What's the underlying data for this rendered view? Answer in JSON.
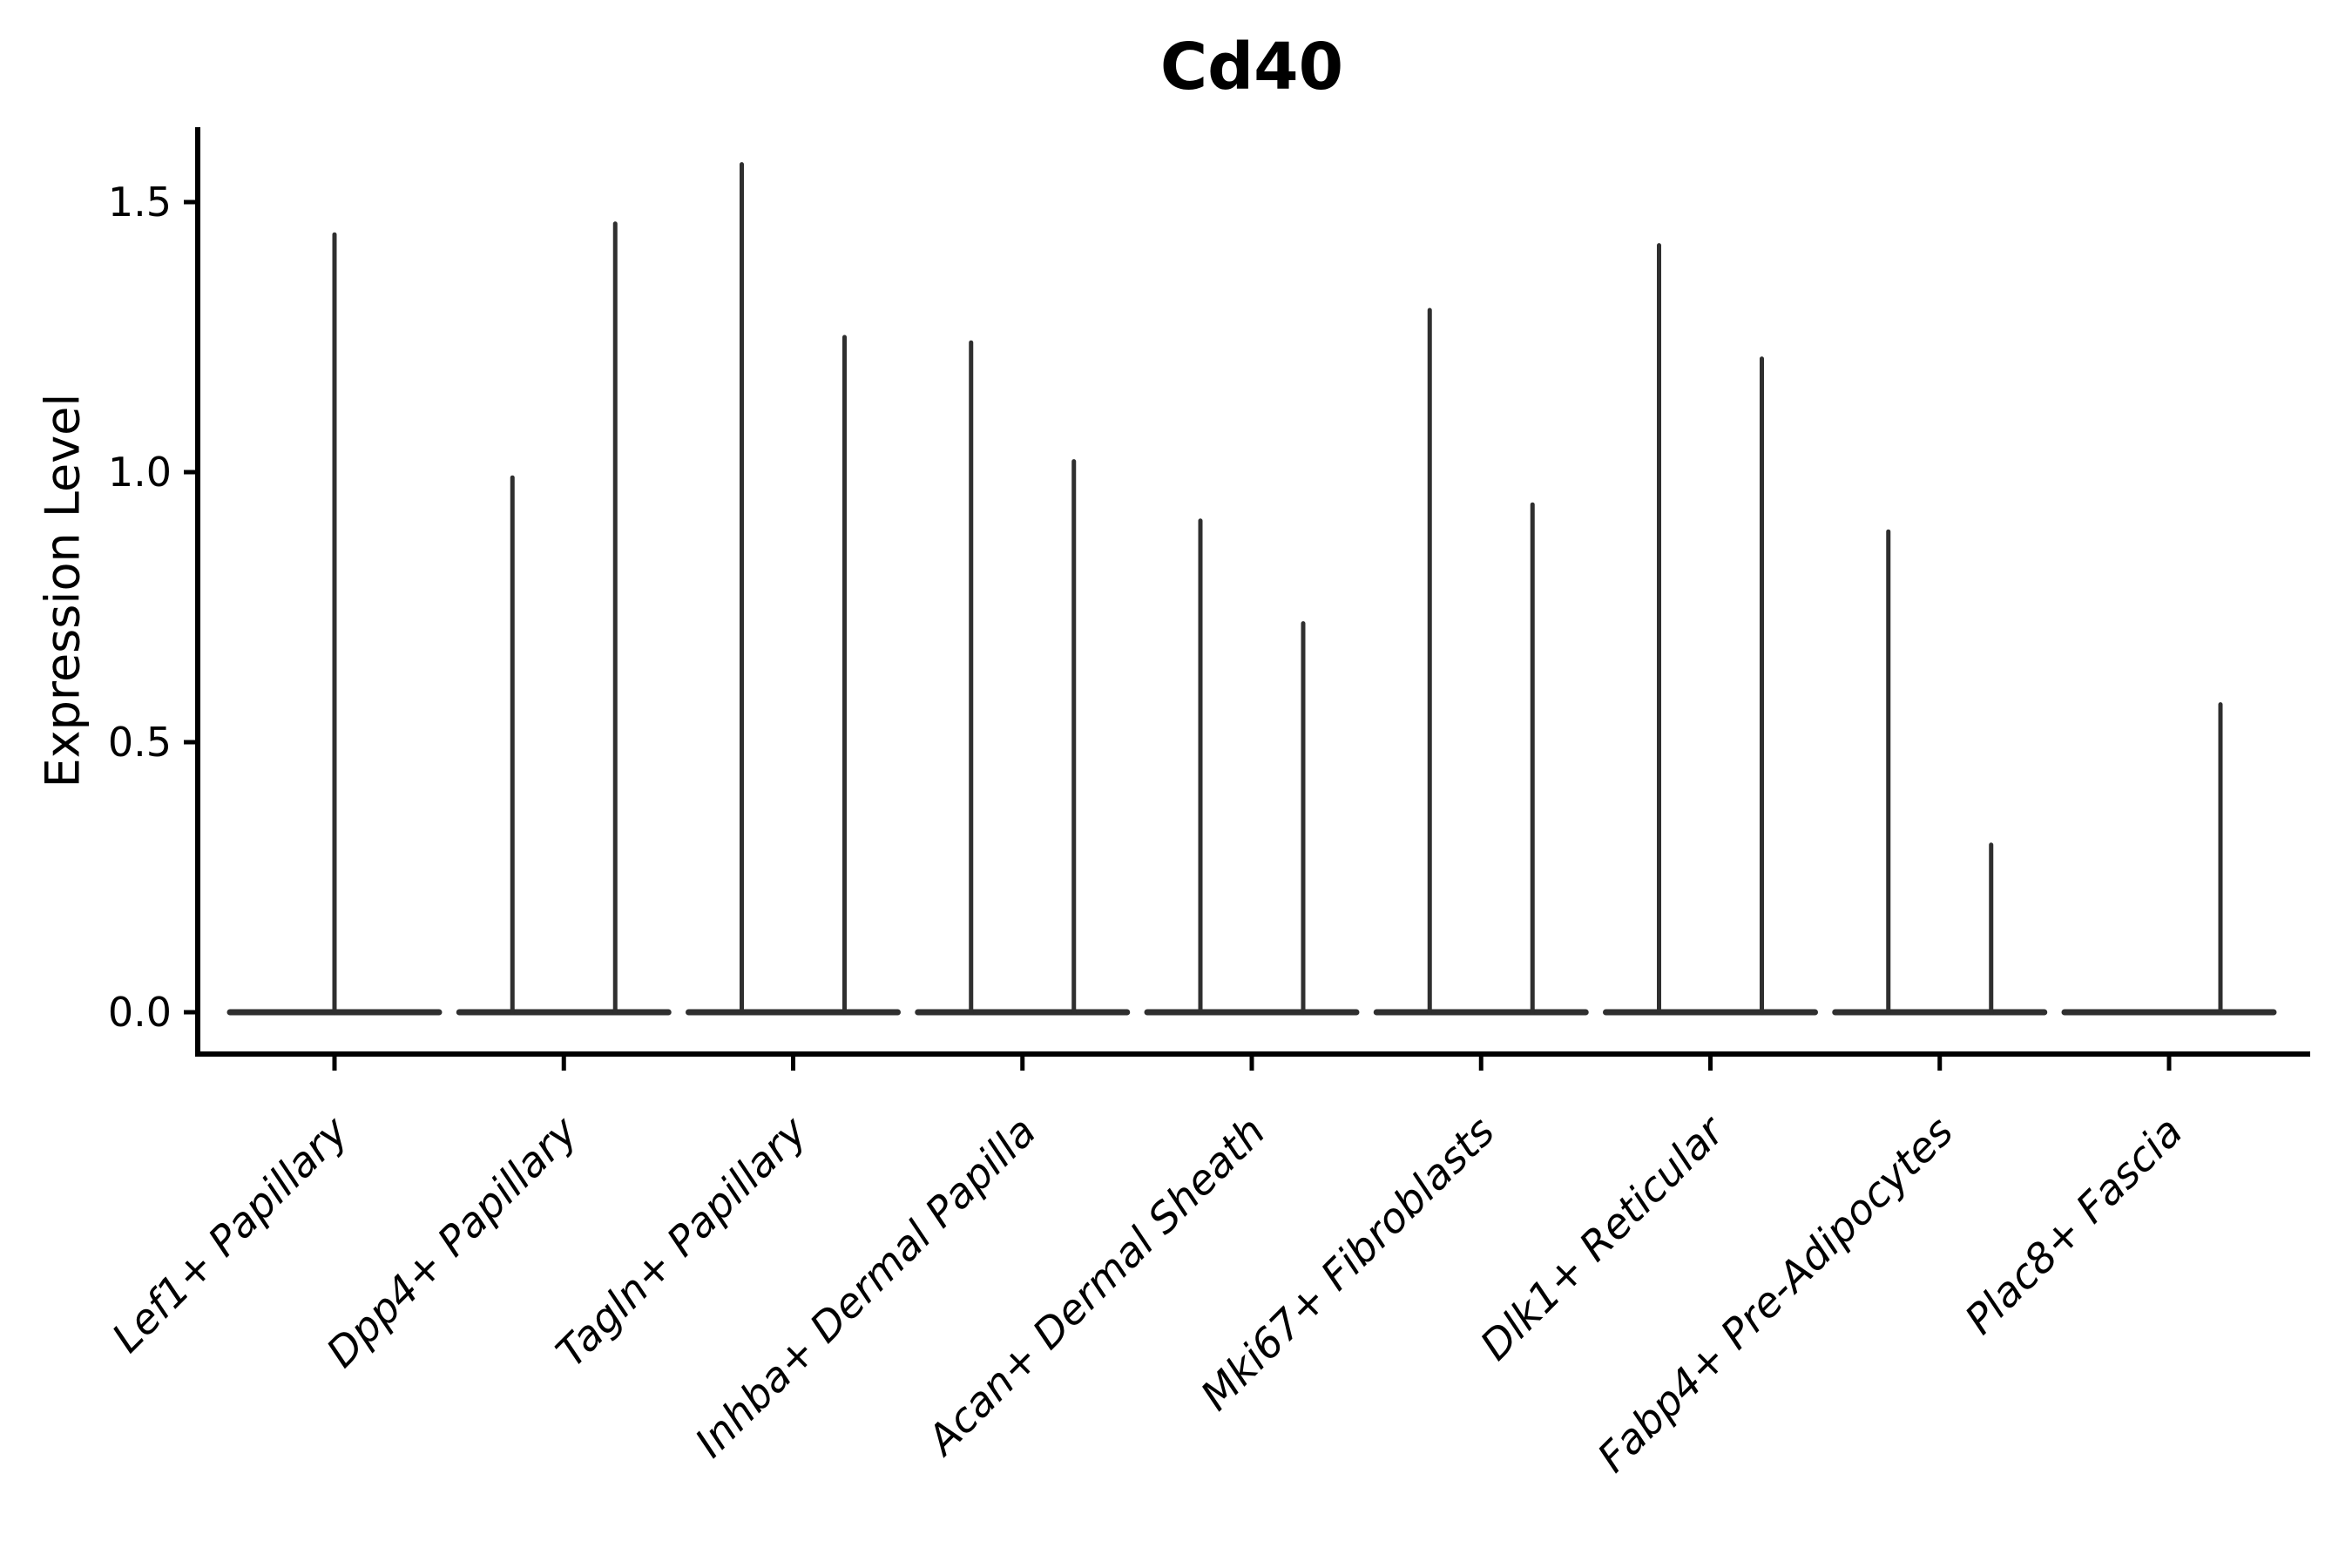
{
  "figure": {
    "title": "Cd40",
    "ylabel": "Expression Level"
  },
  "chart_data": {
    "type": "violin",
    "title": "Cd40",
    "xlabel": "",
    "ylabel": "Expression Level",
    "ylim": [
      -0.08,
      1.64
    ],
    "yticks": [
      0.0,
      0.5,
      1.0,
      1.5
    ],
    "ytick_labels": [
      "0.0",
      "0.5",
      "1.0",
      "1.5"
    ],
    "grid": false,
    "legend": null,
    "violin_color": "#2f2f2f",
    "axis_color": "#000000",
    "style": "needle-thin violins: bulk of cells at expression 0 (wide flat base on baseline) with a single thin tail rising to the max value; two violins per category side by side, except a lone centered violin when only one group is present",
    "categories": [
      "Lef1+ Papillary",
      "Dpp4+ Papillary",
      "Tagln+ Papillary",
      "Inhba+ Dermal Papilla",
      "Acan+ Dermal Sheath",
      "Mki67+ Fibroblasts",
      "Dlk1+ Reticular",
      "Fabp4+ Pre-Adipocytes",
      "Plac8+ Fascia"
    ],
    "violins_per_category": [
      {
        "category": "Lef1+ Papillary",
        "violins": [
          {
            "position": "center",
            "max": 1.44
          }
        ]
      },
      {
        "category": "Dpp4+ Papillary",
        "violins": [
          {
            "position": "left",
            "max": 0.99
          },
          {
            "position": "right",
            "max": 1.46
          }
        ]
      },
      {
        "category": "Tagln+ Papillary",
        "violins": [
          {
            "position": "left",
            "max": 1.57
          },
          {
            "position": "right",
            "max": 1.25
          }
        ]
      },
      {
        "category": "Inhba+ Dermal Papilla",
        "violins": [
          {
            "position": "left",
            "max": 1.24
          },
          {
            "position": "right",
            "max": 1.02
          }
        ]
      },
      {
        "category": "Acan+ Dermal Sheath",
        "violins": [
          {
            "position": "left",
            "max": 0.91
          },
          {
            "position": "right",
            "max": 0.72
          }
        ]
      },
      {
        "category": "Mki67+ Fibroblasts",
        "violins": [
          {
            "position": "left",
            "max": 1.3
          },
          {
            "position": "right",
            "max": 0.94
          }
        ]
      },
      {
        "category": "Dlk1+ Reticular",
        "violins": [
          {
            "position": "left",
            "max": 1.42
          },
          {
            "position": "right",
            "max": 1.21
          }
        ]
      },
      {
        "category": "Fabp4+ Pre-Adipocytes",
        "violins": [
          {
            "position": "left",
            "max": 0.89
          },
          {
            "position": "right",
            "max": 0.31
          }
        ]
      },
      {
        "category": "Plac8+ Fascia",
        "violins": [
          {
            "position": "left",
            "max": 0.0
          },
          {
            "position": "right",
            "max": 0.57
          }
        ]
      }
    ]
  }
}
